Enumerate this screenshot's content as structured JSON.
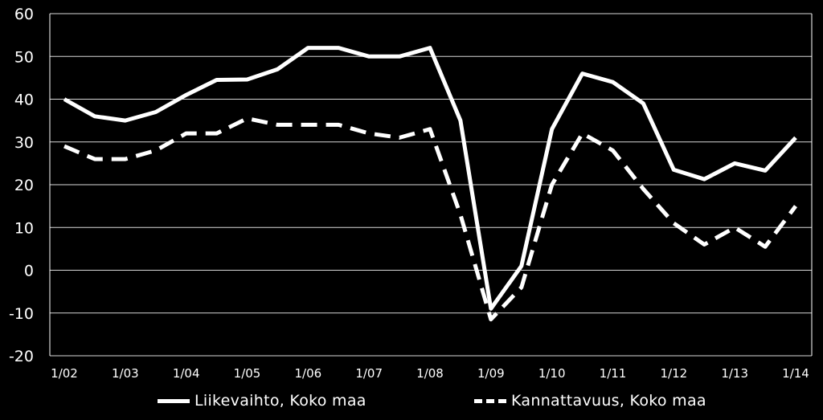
{
  "chart_data": {
    "type": "line",
    "title": "",
    "xlabel": "",
    "ylabel": "",
    "ylim": [
      -20,
      60
    ],
    "yticks": [
      -20,
      -10,
      0,
      10,
      20,
      30,
      40,
      50,
      60
    ],
    "grid": true,
    "x_tick_labels": [
      "1/02",
      "1/03",
      "1/04",
      "1/05",
      "1/06",
      "1/07",
      "1/08",
      "1/09",
      "1/10",
      "1/11",
      "1/12",
      "1/13",
      "1/14"
    ],
    "categories": [
      "1/02",
      "",
      "1/03",
      "",
      "1/04",
      "",
      "1/05",
      "",
      "1/06",
      "",
      "1/07",
      "",
      "1/08",
      "",
      "1/09",
      "",
      "1/10",
      "",
      "1/11",
      "",
      "1/12",
      "",
      "1/13",
      "",
      "1/14"
    ],
    "series": [
      {
        "name": "Liikevaihto, Koko maa",
        "style": "solid",
        "color": "#ffffff",
        "values": [
          40,
          36,
          35,
          37,
          41,
          44.5,
          44.6,
          47,
          52,
          52,
          50,
          50,
          52,
          35,
          -9,
          1,
          33,
          46,
          44,
          39,
          23.5,
          21.3,
          25,
          23.3,
          31
        ]
      },
      {
        "name": "Kannattavuus, Koko maa",
        "style": "dashed",
        "color": "#ffffff",
        "values": [
          29,
          26,
          26,
          28,
          32,
          32,
          35.5,
          34,
          34,
          34,
          32,
          31,
          33,
          13,
          -11.5,
          -4,
          20,
          32,
          28,
          19,
          11,
          6,
          10,
          5.5,
          15
        ]
      }
    ],
    "legend_position": "bottom",
    "colors": {
      "background": "#000000",
      "foreground": "#ffffff"
    }
  }
}
